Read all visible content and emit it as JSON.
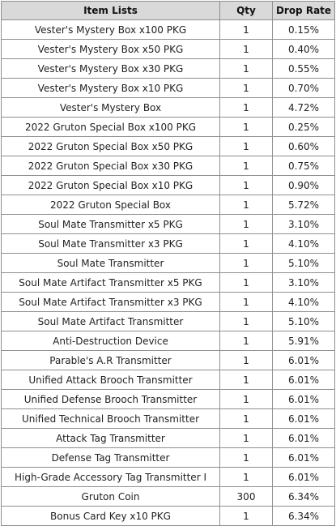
{
  "headers": {
    "item": "Item Lists",
    "qty": "Qty",
    "rate": "Drop Rate"
  },
  "rows": [
    {
      "item": "Vester's Mystery Box x100 PKG",
      "qty": "1",
      "rate": "0.15%"
    },
    {
      "item": "Vester's Mystery Box x50 PKG",
      "qty": "1",
      "rate": "0.40%"
    },
    {
      "item": "Vester's Mystery Box x30 PKG",
      "qty": "1",
      "rate": "0.55%"
    },
    {
      "item": "Vester's Mystery Box x10 PKG",
      "qty": "1",
      "rate": "0.70%"
    },
    {
      "item": "Vester's Mystery Box",
      "qty": "1",
      "rate": "4.72%"
    },
    {
      "item": "2022 Gruton Special Box x100 PKG",
      "qty": "1",
      "rate": "0.25%"
    },
    {
      "item": "2022 Gruton Special Box x50 PKG",
      "qty": "1",
      "rate": "0.60%"
    },
    {
      "item": "2022 Gruton Special Box x30 PKG",
      "qty": "1",
      "rate": "0.75%"
    },
    {
      "item": "2022 Gruton Special Box x10 PKG",
      "qty": "1",
      "rate": "0.90%"
    },
    {
      "item": "2022 Gruton Special Box",
      "qty": "1",
      "rate": "5.72%"
    },
    {
      "item": "Soul Mate Transmitter x5 PKG",
      "qty": "1",
      "rate": "3.10%"
    },
    {
      "item": "Soul Mate Transmitter x3 PKG",
      "qty": "1",
      "rate": "4.10%"
    },
    {
      "item": "Soul Mate Transmitter",
      "qty": "1",
      "rate": "5.10%"
    },
    {
      "item": "Soul Mate Artifact Transmitter x5 PKG",
      "qty": "1",
      "rate": "3.10%"
    },
    {
      "item": "Soul Mate Artifact Transmitter x3 PKG",
      "qty": "1",
      "rate": "4.10%"
    },
    {
      "item": "Soul Mate Artifact Transmitter",
      "qty": "1",
      "rate": "5.10%"
    },
    {
      "item": "Anti-Destruction Device",
      "qty": "1",
      "rate": "5.91%"
    },
    {
      "item": "Parable's A.R Transmitter",
      "qty": "1",
      "rate": "6.01%"
    },
    {
      "item": "Unified Attack Brooch Transmitter",
      "qty": "1",
      "rate": "6.01%"
    },
    {
      "item": "Unified Defense Brooch Transmitter",
      "qty": "1",
      "rate": "6.01%"
    },
    {
      "item": "Unified Technical Brooch Transmitter",
      "qty": "1",
      "rate": "6.01%"
    },
    {
      "item": "Attack Tag Transmitter",
      "qty": "1",
      "rate": "6.01%"
    },
    {
      "item": "Defense Tag Transmitter",
      "qty": "1",
      "rate": "6.01%"
    },
    {
      "item": "High-Grade Accessory Tag Transmitter I",
      "qty": "1",
      "rate": "6.01%"
    },
    {
      "item": "Gruton Coin",
      "qty": "300",
      "rate": "6.34%"
    },
    {
      "item": "Bonus Card Key x10 PKG",
      "qty": "1",
      "rate": "6.34%"
    }
  ]
}
